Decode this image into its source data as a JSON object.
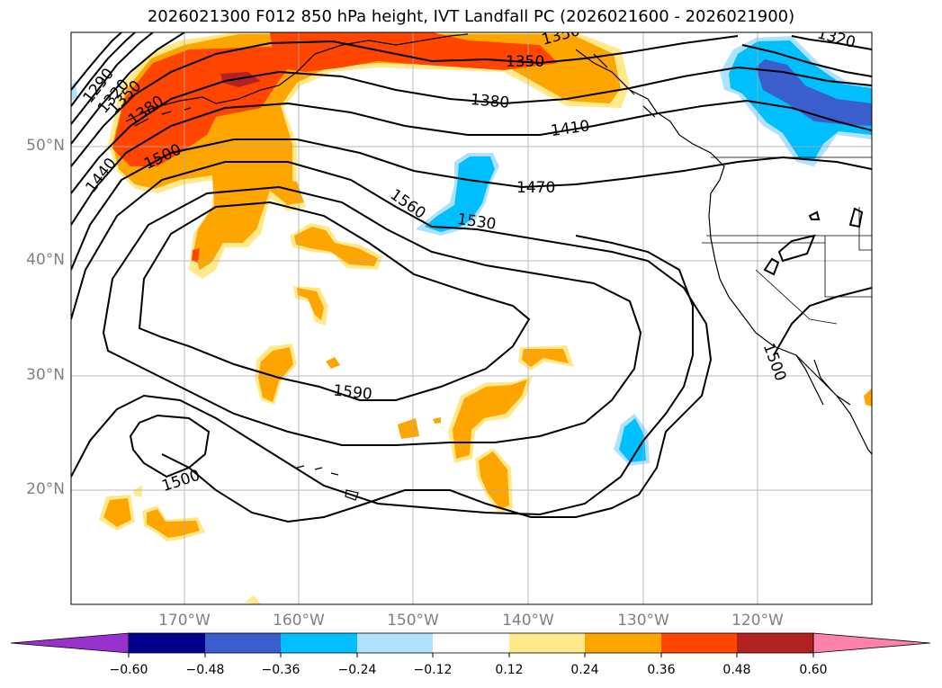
{
  "title": "2026021300 F012 850 hPa height, IVT Landfall PC (2026021600 - 2026021900)",
  "map": {
    "projection": "PlateCarree",
    "lon_range": [
      -180,
      -110
    ],
    "lat_range": [
      10,
      60
    ],
    "gridlines": true,
    "lat_ticks": [
      "50°N",
      "40°N",
      "30°N",
      "20°N"
    ],
    "lon_ticks": [
      "170°W",
      "160°W",
      "150°W",
      "140°W",
      "130°W",
      "120°W"
    ]
  },
  "height_contours": {
    "units": "m",
    "labels": [
      "1290",
      "1320",
      "1350",
      "1380",
      "1440",
      "1500",
      "1350",
      "1380",
      "1410",
      "1470",
      "1560",
      "1530",
      "1590",
      "1500",
      "1500",
      "1320",
      "1350"
    ]
  },
  "colorbar": {
    "ticks": [
      "−0.60",
      "−0.48",
      "−0.36",
      "−0.24",
      "−0.12",
      "0.12",
      "0.24",
      "0.36",
      "0.48",
      "0.60"
    ],
    "colors": [
      "#9932cc",
      "#00008b",
      "#3a5fcd",
      "#00bfff",
      "#b0e2ff",
      "#ffffff",
      "#ffe98a",
      "#ffa500",
      "#ff4500",
      "#b22222",
      "#ff82ab"
    ]
  },
  "colors": {
    "pos_light": "#ffe98a",
    "pos_orange": "#ffa500",
    "pos_red": "#ff4500",
    "pos_dark": "#b22222",
    "neg_light": "#b0e2ff",
    "neg_cyan": "#00bfff",
    "neg_blue": "#3a5fcd"
  }
}
